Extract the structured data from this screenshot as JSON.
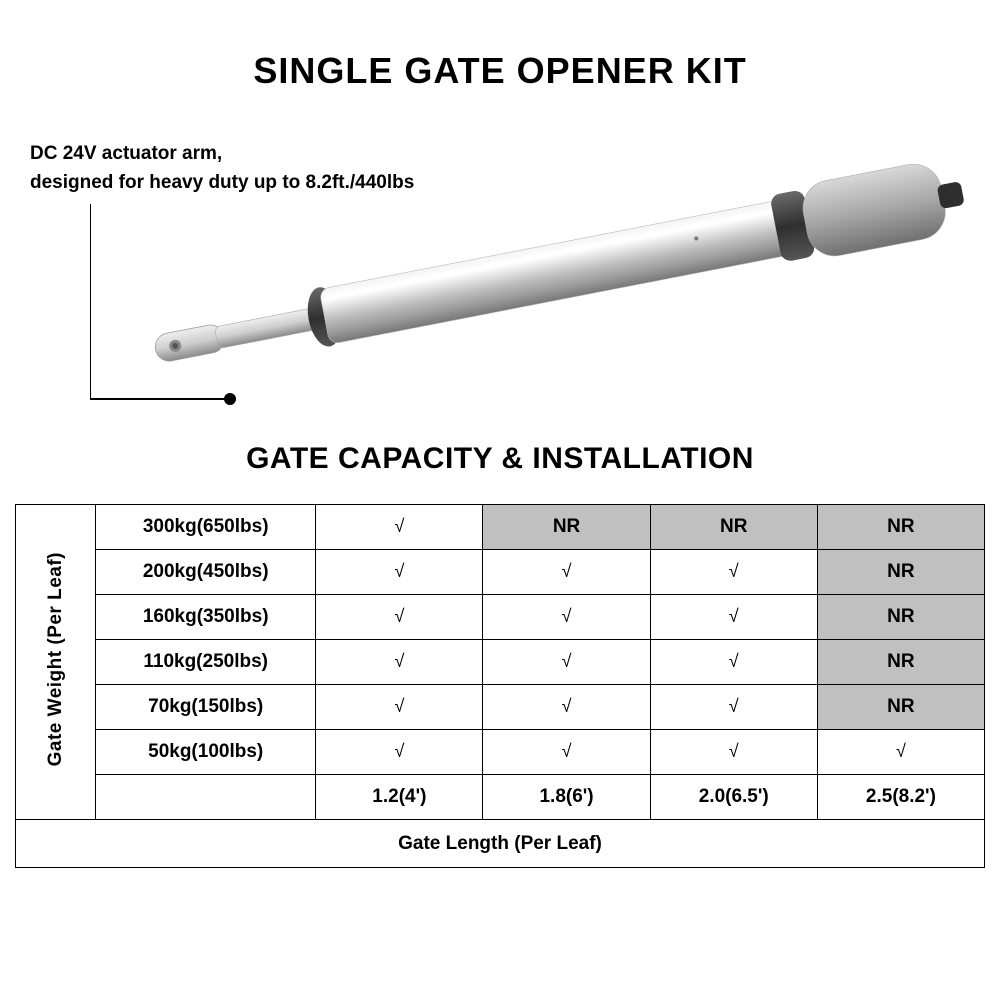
{
  "title_main": "SINGLE GATE OPENER KIT",
  "callout": {
    "line1": "DC 24V actuator arm,",
    "line2_prefix": "designed for heavy duty up to ",
    "spec": "8.2ft./440lbs"
  },
  "title_sub": "GATE CAPACITY & INSTALLATION",
  "table": {
    "row_axis_label": "Gate Weight (Per Leaf)",
    "col_axis_label": "Gate Length (Per Leaf)",
    "lengths": [
      "1.2(4')",
      "1.8(6')",
      "2.0(6.5')",
      "2.5(8.2')"
    ],
    "rows": [
      {
        "weight": "300kg(650lbs)",
        "cells": [
          "check",
          "NR",
          "NR",
          "NR"
        ]
      },
      {
        "weight": "200kg(450lbs)",
        "cells": [
          "check",
          "check",
          "check",
          "NR"
        ]
      },
      {
        "weight": "160kg(350lbs)",
        "cells": [
          "check",
          "check",
          "check",
          "NR"
        ]
      },
      {
        "weight": "110kg(250lbs)",
        "cells": [
          "check",
          "check",
          "check",
          "NR"
        ]
      },
      {
        "weight": "70kg(150lbs)",
        "cells": [
          "check",
          "check",
          "check",
          "NR"
        ]
      },
      {
        "weight": "50kg(100lbs)",
        "cells": [
          "check",
          "check",
          "check",
          "check"
        ]
      }
    ],
    "check_glyph": "√",
    "nr_label": "NR",
    "nr_bg": "#c0c0c0",
    "border_color": "#000000",
    "font_size": 19,
    "font_weight": 700
  },
  "colors": {
    "background": "#ffffff",
    "text": "#000000",
    "actuator_light": "#d8d8d8",
    "actuator_dark": "#888888",
    "actuator_collar": "#3a3a3a"
  }
}
